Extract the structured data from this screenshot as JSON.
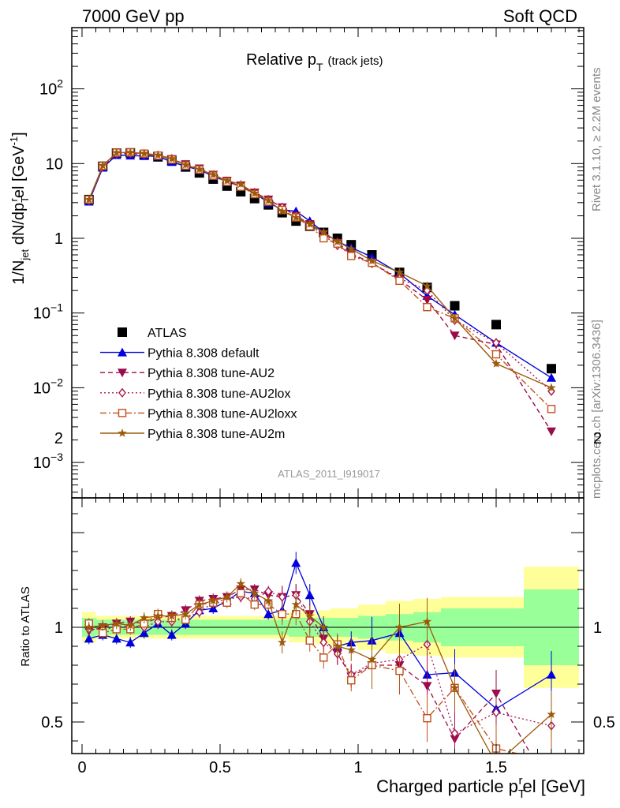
{
  "header": {
    "left": "7000 GeV pp",
    "right": "Soft QCD"
  },
  "side": {
    "rivet": "Rivet 3.1.10, ≥ 2.2M events",
    "mcplots": "mcplots.cern.ch [arXiv:1306.3436]"
  },
  "plot": {
    "title_main": "Relative p",
    "title_sub": "T",
    "title_note": "(track jets)",
    "analysis_id": "ATLAS_2011_I919017"
  },
  "axes": {
    "ylabel_main": "1/N",
    "ylabel_sub1": "jet",
    "ylabel_mid": " dN/dp",
    "ylabel_sub2": "T",
    "ylabel_sup2": "r",
    "ylabel_end": "el [GeV",
    "ylabel_sup": "-1",
    "ylabel_close": "]",
    "ratio_ylabel": "Ratio to ATLAS",
    "xlabel_main": "Charged particle p",
    "xlabel_sub": "T",
    "xlabel_sup": "r",
    "xlabel_end": "el [GeV]"
  },
  "colors": {
    "ATLAS": "#000000",
    "default": "#0000dd",
    "AU2": "#9b0a4a",
    "AU2lox": "#a8184f",
    "AU2loxx": "#c0501a",
    "AU2m": "#9b5a0a",
    "band_inner": "#99ff99",
    "band_outer": "#ffff99"
  },
  "chart_data": {
    "type": "line",
    "x": [
      0.025,
      0.075,
      0.125,
      0.175,
      0.225,
      0.275,
      0.325,
      0.375,
      0.425,
      0.475,
      0.525,
      0.575,
      0.625,
      0.675,
      0.725,
      0.775,
      0.825,
      0.875,
      0.925,
      0.975,
      1.05,
      1.15,
      1.25,
      1.35,
      1.5,
      1.7
    ],
    "xlim": [
      -0.05,
      1.82
    ],
    "ylim_main": [
      0.0003,
      600
    ],
    "ylog": true,
    "ylim_ratio": [
      0.35,
      2.3
    ],
    "xticks": [
      "0",
      "0.5",
      "1",
      "1.5"
    ],
    "yticks_main": [
      "10^-3",
      "10^-2",
      "10^-1",
      "1",
      "10",
      "10^2"
    ],
    "yticks_ratio": [
      "0.5",
      "1",
      "2"
    ],
    "legend_placement": "lower-left",
    "series": [
      {
        "key": "ATLAS",
        "name": "ATLAS",
        "marker": "square",
        "line": "none",
        "values": [
          3.3,
          9.2,
          13.8,
          13.9,
          13.0,
          12.3,
          11.0,
          9.0,
          7.5,
          6.2,
          5.0,
          4.2,
          3.4,
          2.8,
          2.2,
          1.7,
          1.45,
          1.2,
          1.0,
          0.82,
          0.6,
          0.35,
          0.22,
          0.125,
          0.07,
          0.018
        ],
        "ratio": []
      },
      {
        "key": "default",
        "name": "Pythia 8.308 default",
        "marker": "tri-up",
        "line": "solid",
        "values": [
          3.1,
          8.8,
          13.0,
          12.8,
          12.6,
          12.5,
          10.5,
          9.2,
          8.2,
          6.8,
          5.7,
          5.0,
          4.0,
          3.0,
          2.4,
          2.3,
          1.7,
          1.2,
          0.9,
          0.75,
          0.56,
          0.34,
          0.17,
          0.095,
          0.04,
          0.0136
        ],
        "ratio": [
          0.94,
          0.96,
          0.94,
          0.92,
          0.97,
          1.02,
          0.96,
          1.02,
          1.09,
          1.1,
          1.14,
          1.19,
          1.18,
          1.07,
          1.09,
          1.34,
          1.17,
          1.0,
          0.9,
          0.92,
          0.93,
          0.97,
          0.75,
          0.76,
          0.57,
          0.75
        ]
      },
      {
        "key": "AU2",
        "name": "Pythia 8.308 tune-AU2",
        "marker": "tri-down",
        "line": "dashed",
        "values": [
          3.2,
          9.0,
          13.5,
          13.6,
          13.2,
          12.8,
          11.5,
          9.8,
          8.6,
          7.1,
          5.9,
          5.1,
          4.1,
          3.3,
          2.6,
          2.0,
          1.55,
          1.15,
          0.87,
          0.62,
          0.47,
          0.28,
          0.15,
          0.05,
          0.038,
          0.0026
        ],
        "ratio": [
          0.98,
          1.0,
          1.02,
          1.03,
          1.02,
          1.05,
          1.06,
          1.09,
          1.14,
          1.15,
          1.16,
          1.2,
          1.2,
          1.17,
          1.16,
          1.17,
          1.07,
          0.94,
          0.86,
          0.74,
          0.8,
          0.8,
          0.69,
          0.41,
          0.65,
          0.14
        ]
      },
      {
        "key": "AU2lox",
        "name": "Pythia 8.308 tune-AU2lox",
        "marker": "diamond",
        "line": "dotted",
        "values": [
          3.2,
          9.1,
          13.6,
          13.7,
          13.3,
          12.9,
          11.6,
          9.7,
          8.4,
          7.0,
          5.8,
          5.0,
          4.1,
          3.3,
          2.6,
          2.0,
          1.5,
          1.1,
          0.8,
          0.6,
          0.46,
          0.29,
          0.2,
          0.08,
          0.04,
          0.009
        ],
        "ratio": [
          0.99,
          0.99,
          1.0,
          1.01,
          1.0,
          1.03,
          1.03,
          1.05,
          1.08,
          1.13,
          1.15,
          1.16,
          1.15,
          1.19,
          1.16,
          1.17,
          1.03,
          0.92,
          0.86,
          0.75,
          0.81,
          0.83,
          0.91,
          0.44,
          0.55,
          0.48
        ]
      },
      {
        "key": "AU2loxx",
        "name": "Pythia 8.308 tune-AU2loxx",
        "marker": "open-square",
        "line": "dashdot",
        "values": [
          3.3,
          9.3,
          14.0,
          14.1,
          13.6,
          12.8,
          11.3,
          9.4,
          8.3,
          6.9,
          5.7,
          4.9,
          3.9,
          3.1,
          2.4,
          1.9,
          1.45,
          1.0,
          0.85,
          0.58,
          0.47,
          0.27,
          0.12,
          0.085,
          0.028,
          0.0052
        ],
        "ratio": [
          1.02,
          0.97,
          0.99,
          0.99,
          1.02,
          1.07,
          1.05,
          1.04,
          1.12,
          1.13,
          1.13,
          1.18,
          1.12,
          1.12,
          1.07,
          1.07,
          0.93,
          0.84,
          0.91,
          0.72,
          0.8,
          0.77,
          0.52,
          0.68,
          0.36,
          0.29
        ]
      },
      {
        "key": "AU2m",
        "name": "Pythia 8.308 tune-AU2m",
        "marker": "star",
        "line": "solid",
        "values": [
          3.3,
          9.4,
          14.0,
          14.1,
          13.7,
          13.0,
          11.6,
          9.6,
          8.4,
          7.1,
          5.9,
          5.3,
          4.0,
          3.2,
          2.3,
          1.9,
          1.55,
          1.2,
          0.9,
          0.72,
          0.5,
          0.35,
          0.23,
          0.085,
          0.021,
          0.01
        ],
        "ratio": [
          1.0,
          1.01,
          1.02,
          1.01,
          1.05,
          1.06,
          1.06,
          1.07,
          1.12,
          1.14,
          1.16,
          1.23,
          1.18,
          1.14,
          0.92,
          1.12,
          1.06,
          1.0,
          0.9,
          0.88,
          0.83,
          1.0,
          1.03,
          0.68,
          0.28,
          0.54
        ]
      }
    ],
    "ratio_band": {
      "x_edges": [
        0.0,
        0.05,
        0.1,
        0.15,
        0.2,
        0.25,
        0.3,
        0.35,
        0.4,
        0.45,
        0.5,
        0.55,
        0.6,
        0.65,
        0.7,
        0.75,
        0.8,
        0.85,
        0.9,
        0.95,
        1.0,
        1.1,
        1.2,
        1.3,
        1.4,
        1.6,
        1.8
      ],
      "inner": [
        0.05,
        0.04,
        0.04,
        0.04,
        0.04,
        0.04,
        0.04,
        0.04,
        0.04,
        0.04,
        0.04,
        0.04,
        0.04,
        0.04,
        0.04,
        0.05,
        0.05,
        0.05,
        0.05,
        0.05,
        0.06,
        0.07,
        0.08,
        0.1,
        0.1,
        0.2
      ],
      "outer": [
        0.08,
        0.06,
        0.06,
        0.06,
        0.06,
        0.06,
        0.06,
        0.06,
        0.06,
        0.06,
        0.06,
        0.06,
        0.06,
        0.06,
        0.06,
        0.08,
        0.08,
        0.09,
        0.1,
        0.1,
        0.12,
        0.14,
        0.15,
        0.16,
        0.16,
        0.32
      ]
    }
  }
}
